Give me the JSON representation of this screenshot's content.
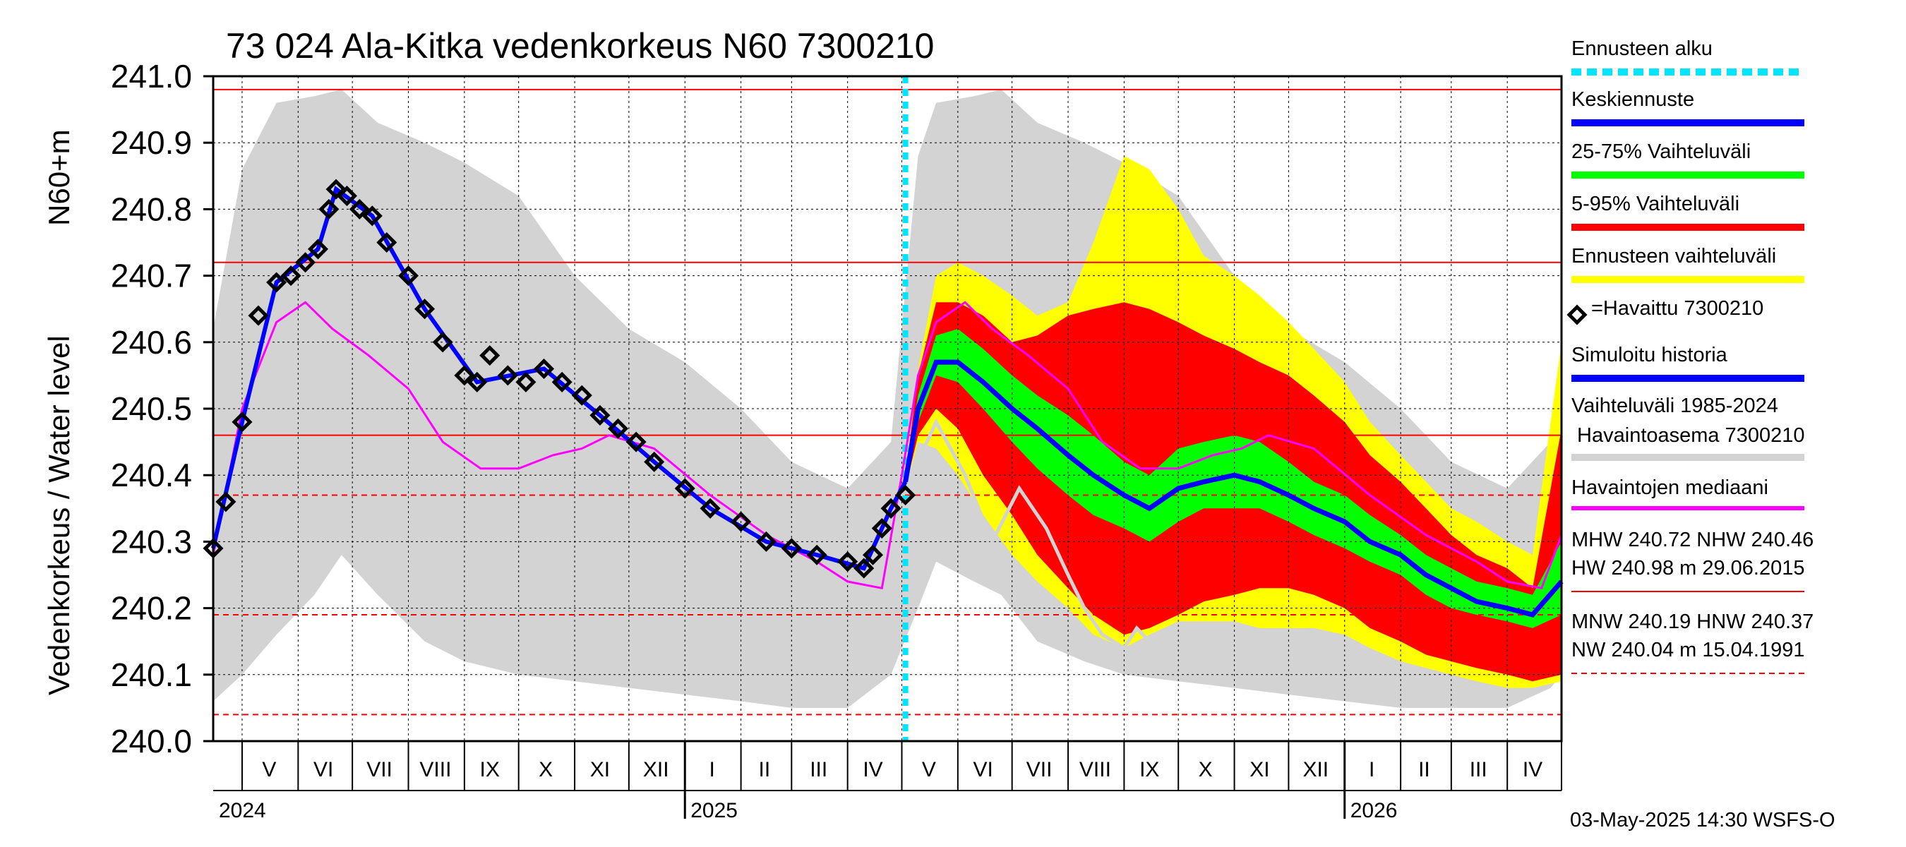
{
  "chart_data": {
    "type": "line",
    "title": "73 024 Ala-Kitka vedenkorkeus N60 7300210",
    "ylabel_top": "N60+m",
    "ylabel": "Vedenkorkeus / Water level",
    "ylim": [
      240.0,
      241.0
    ],
    "yticks": [
      "240.0",
      "240.1",
      "240.2",
      "240.3",
      "240.4",
      "240.5",
      "240.6",
      "240.7",
      "240.8",
      "240.9",
      "241.0"
    ],
    "x_start": "2024-04-15",
    "x_end": "2026-05-01",
    "forecast_start": "2025-05-03",
    "month_labels": [
      {
        "label": "V",
        "date": "2024-05-16"
      },
      {
        "label": "VI",
        "date": "2024-06-15"
      },
      {
        "label": "VII",
        "date": "2024-07-16"
      },
      {
        "label": "VIII",
        "date": "2024-08-16"
      },
      {
        "label": "IX",
        "date": "2024-09-15"
      },
      {
        "label": "X",
        "date": "2024-10-16"
      },
      {
        "label": "XI",
        "date": "2024-11-15"
      },
      {
        "label": "XII",
        "date": "2024-12-16"
      },
      {
        "label": "I",
        "date": "2025-01-16"
      },
      {
        "label": "II",
        "date": "2025-02-14"
      },
      {
        "label": "III",
        "date": "2025-03-16"
      },
      {
        "label": "IV",
        "date": "2025-04-15"
      },
      {
        "label": "V",
        "date": "2025-05-16"
      },
      {
        "label": "VI",
        "date": "2025-06-15"
      },
      {
        "label": "VII",
        "date": "2025-07-16"
      },
      {
        "label": "VIII",
        "date": "2025-08-16"
      },
      {
        "label": "IX",
        "date": "2025-09-15"
      },
      {
        "label": "X",
        "date": "2025-10-16"
      },
      {
        "label": "XI",
        "date": "2025-11-15"
      },
      {
        "label": "XII",
        "date": "2025-12-16"
      },
      {
        "label": "I",
        "date": "2026-01-16"
      },
      {
        "label": "II",
        "date": "2026-02-14"
      },
      {
        "label": "III",
        "date": "2026-03-16"
      },
      {
        "label": "IV",
        "date": "2026-04-15"
      }
    ],
    "year_labels": [
      {
        "label": "2024",
        "date": "2024-04-15"
      },
      {
        "label": "2025",
        "date": "2025-01-01"
      },
      {
        "label": "2026",
        "date": "2026-01-01"
      }
    ],
    "hlines": [
      {
        "value": 240.98,
        "style": "solid"
      },
      {
        "value": 240.72,
        "style": "solid"
      },
      {
        "value": 240.46,
        "style": "solid"
      },
      {
        "value": 240.37,
        "style": "dashed"
      },
      {
        "value": 240.19,
        "style": "dashed"
      },
      {
        "value": 240.04,
        "style": "dashed"
      }
    ],
    "history_band": {
      "dates": [
        "2024-04-15",
        "2024-05-01",
        "2024-05-20",
        "2024-06-10",
        "2024-06-25",
        "2024-07-15",
        "2024-08-10",
        "2024-09-01",
        "2024-10-01",
        "2024-11-01",
        "2024-12-01",
        "2025-01-01",
        "2025-02-01",
        "2025-03-01",
        "2025-04-01",
        "2025-04-25",
        "2025-05-10",
        "2025-05-20",
        "2025-06-10",
        "2025-06-25",
        "2025-07-15",
        "2025-08-10",
        "2025-09-01",
        "2025-10-01",
        "2025-11-01",
        "2025-12-01",
        "2026-01-01",
        "2026-02-01",
        "2026-03-01",
        "2026-04-01",
        "2026-04-25",
        "2026-05-01"
      ],
      "max": [
        240.62,
        240.86,
        240.96,
        240.97,
        240.98,
        240.93,
        240.9,
        240.87,
        240.82,
        240.7,
        240.62,
        240.57,
        240.5,
        240.42,
        240.38,
        240.45,
        240.88,
        240.96,
        240.97,
        240.98,
        240.93,
        240.9,
        240.87,
        240.82,
        240.7,
        240.62,
        240.57,
        240.5,
        240.42,
        240.38,
        240.45,
        240.6
      ],
      "min": [
        240.06,
        240.1,
        240.16,
        240.22,
        240.28,
        240.22,
        240.15,
        240.12,
        240.1,
        240.09,
        240.08,
        240.07,
        240.06,
        240.05,
        240.05,
        240.1,
        240.2,
        240.27,
        240.24,
        240.22,
        240.15,
        240.12,
        240.1,
        240.09,
        240.08,
        240.07,
        240.06,
        240.05,
        240.05,
        240.05,
        240.08,
        240.1
      ]
    },
    "forecast_dates": [
      "2025-05-03",
      "2025-05-10",
      "2025-05-20",
      "2025-06-01",
      "2025-06-15",
      "2025-07-01",
      "2025-07-15",
      "2025-08-01",
      "2025-08-15",
      "2025-09-01",
      "2025-09-15",
      "2025-10-01",
      "2025-10-15",
      "2025-11-01",
      "2025-11-15",
      "2025-12-01",
      "2025-12-15",
      "2026-01-01",
      "2026-01-15",
      "2026-02-01",
      "2026-02-15",
      "2026-03-01",
      "2026-03-15",
      "2026-04-01",
      "2026-04-15",
      "2026-05-01"
    ],
    "forecast_range_max": [
      240.4,
      240.56,
      240.7,
      240.72,
      240.7,
      240.67,
      240.64,
      240.66,
      240.75,
      240.88,
      240.86,
      240.8,
      240.73,
      240.7,
      240.67,
      240.63,
      240.59,
      240.54,
      240.48,
      240.43,
      240.39,
      240.35,
      240.33,
      240.3,
      240.28,
      240.6
    ],
    "forecast_range_min": [
      240.38,
      240.45,
      240.44,
      240.4,
      240.34,
      240.28,
      240.24,
      240.2,
      240.16,
      240.14,
      240.16,
      240.18,
      240.18,
      240.18,
      240.17,
      240.17,
      240.17,
      240.16,
      240.14,
      240.12,
      240.11,
      240.1,
      240.09,
      240.08,
      240.08,
      240.09
    ],
    "p5": [
      240.38,
      240.46,
      240.5,
      240.47,
      240.4,
      240.34,
      240.28,
      240.23,
      240.19,
      240.16,
      240.17,
      240.19,
      240.21,
      240.22,
      240.23,
      240.23,
      240.22,
      240.2,
      240.17,
      240.15,
      240.13,
      240.12,
      240.11,
      240.1,
      240.09,
      240.1
    ],
    "p95": [
      240.4,
      240.55,
      240.66,
      240.66,
      240.64,
      240.6,
      240.61,
      240.64,
      240.65,
      240.66,
      240.65,
      240.63,
      240.61,
      240.59,
      240.57,
      240.55,
      240.52,
      240.48,
      240.43,
      240.39,
      240.35,
      240.31,
      240.28,
      240.26,
      240.23,
      240.47
    ],
    "p25": [
      240.39,
      240.48,
      240.55,
      240.54,
      240.5,
      240.45,
      240.41,
      240.37,
      240.34,
      240.32,
      240.3,
      240.33,
      240.35,
      240.35,
      240.35,
      240.33,
      240.31,
      240.29,
      240.27,
      240.25,
      240.22,
      240.2,
      240.19,
      240.18,
      240.17,
      240.19
    ],
    "p75": [
      240.4,
      240.52,
      240.61,
      240.62,
      240.59,
      240.55,
      240.52,
      240.49,
      240.46,
      240.42,
      240.4,
      240.44,
      240.45,
      240.46,
      240.45,
      240.42,
      240.39,
      240.37,
      240.34,
      240.31,
      240.28,
      240.26,
      240.24,
      240.23,
      240.22,
      240.3
    ],
    "forecast_mean": [
      240.39,
      240.5,
      240.57,
      240.57,
      240.54,
      240.5,
      240.47,
      240.43,
      240.4,
      240.37,
      240.35,
      240.38,
      240.39,
      240.4,
      240.39,
      240.37,
      240.35,
      240.33,
      240.3,
      240.28,
      240.25,
      240.23,
      240.21,
      240.2,
      240.19,
      240.24
    ],
    "observed": {
      "dates": [
        "2024-04-15",
        "2024-04-22",
        "2024-05-01",
        "2024-05-10",
        "2024-05-20",
        "2024-05-28",
        "2024-06-05",
        "2024-06-12",
        "2024-06-18",
        "2024-06-22",
        "2024-06-28",
        "2024-07-05",
        "2024-07-12",
        "2024-07-20",
        "2024-08-01",
        "2024-08-10",
        "2024-08-20",
        "2024-09-01",
        "2024-09-08",
        "2024-09-15",
        "2024-09-25",
        "2024-10-05",
        "2024-10-15",
        "2024-10-25",
        "2024-11-05",
        "2024-11-15",
        "2024-11-25",
        "2024-12-05",
        "2024-12-15",
        "2025-01-01",
        "2025-01-15",
        "2025-02-01",
        "2025-02-15",
        "2025-03-01",
        "2025-03-15",
        "2025-04-01",
        "2025-04-10",
        "2025-04-15",
        "2025-04-20",
        "2025-04-25",
        "2025-05-03"
      ],
      "values": [
        240.29,
        240.36,
        240.48,
        240.64,
        240.69,
        240.7,
        240.72,
        240.74,
        240.8,
        240.83,
        240.82,
        240.8,
        240.79,
        240.75,
        240.7,
        240.65,
        240.6,
        240.55,
        240.54,
        240.58,
        240.55,
        240.54,
        240.56,
        240.54,
        240.52,
        240.49,
        240.47,
        240.45,
        240.42,
        240.38,
        240.35,
        240.33,
        240.3,
        240.29,
        240.28,
        240.27,
        240.26,
        240.28,
        240.32,
        240.35,
        240.37
      ]
    },
    "sim_history": {
      "dates": [
        "2024-04-15",
        "2024-05-01",
        "2024-05-20",
        "2024-06-12",
        "2024-06-22",
        "2024-07-12",
        "2024-08-10",
        "2024-09-08",
        "2024-10-15",
        "2024-11-15",
        "2024-12-15",
        "2025-01-15",
        "2025-02-15",
        "2025-03-15",
        "2025-04-10",
        "2025-04-25",
        "2025-05-03"
      ],
      "values": [
        240.29,
        240.48,
        240.69,
        240.74,
        240.83,
        240.79,
        240.65,
        240.54,
        240.56,
        240.49,
        240.42,
        240.35,
        240.3,
        240.28,
        240.26,
        240.35,
        240.39
      ]
    },
    "median": {
      "dates": [
        "2024-04-15",
        "2024-05-01",
        "2024-05-20",
        "2024-06-05",
        "2024-06-20",
        "2024-07-10",
        "2024-08-01",
        "2024-08-20",
        "2024-09-10",
        "2024-10-01",
        "2024-10-20",
        "2024-11-05",
        "2024-11-20",
        "2024-12-15",
        "2025-01-15",
        "2025-02-15",
        "2025-03-15",
        "2025-04-01",
        "2025-04-20",
        "2025-05-01",
        "2025-05-10",
        "2025-05-20",
        "2025-06-05",
        "2025-06-20",
        "2025-07-10",
        "2025-08-01",
        "2025-08-20",
        "2025-09-10",
        "2025-10-01",
        "2025-10-20",
        "2025-11-05",
        "2025-11-20",
        "2025-12-15",
        "2026-01-15",
        "2026-02-15",
        "2026-03-15",
        "2026-04-01",
        "2026-04-20",
        "2026-05-01"
      ],
      "values": [
        240.28,
        240.5,
        240.63,
        240.66,
        240.62,
        240.58,
        240.53,
        240.45,
        240.41,
        240.41,
        240.43,
        240.44,
        240.46,
        240.44,
        240.37,
        240.31,
        240.27,
        240.24,
        240.23,
        240.4,
        240.55,
        240.63,
        240.66,
        240.62,
        240.58,
        240.53,
        240.45,
        240.41,
        240.41,
        240.43,
        240.44,
        240.46,
        240.44,
        240.37,
        240.31,
        240.27,
        240.24,
        240.23,
        240.31
      ]
    },
    "sim_low_grey": {
      "dates": [
        "2025-05-03",
        "2025-05-20",
        "2025-06-05",
        "2025-06-20",
        "2025-07-05",
        "2025-07-20",
        "2025-08-01",
        "2025-08-10",
        "2025-08-20",
        "2025-09-01",
        "2025-09-08",
        "2025-09-15"
      ],
      "values": [
        240.38,
        240.48,
        240.4,
        240.3,
        240.38,
        240.32,
        240.25,
        240.2,
        240.16,
        240.14,
        240.17,
        240.15
      ]
    },
    "colors": {
      "history_band": "#d3d3d3",
      "forecast_range": "#ffff00",
      "p5_95": "#ff0000",
      "p25_75": "#00ff00",
      "forecast_mean": "#0000ff",
      "observed": "#000000",
      "sim_history": "#0000ff",
      "median": "#ff00ff",
      "ref_lines": "#ff0000",
      "forecast_start": "#00e5ff",
      "grid": "#000000"
    }
  },
  "legend": {
    "forecast_start": "Ennusteen alku",
    "mean_forecast": "Keskiennuste",
    "range_25_75": "25-75% Vaihteluväli",
    "range_5_95": "5-95% Vaihteluväli",
    "forecast_range": "Ennusteen vaihteluväli",
    "observed": "=Havaittu 7300210",
    "sim_history": "Simuloitu historia",
    "history_range_line1": "Vaihteluväli 1985-2024",
    "history_range_line2": " Havaintoasema 7300210",
    "median": "Havaintojen mediaani"
  },
  "stats": {
    "line1": "MHW 240.72 NHW 240.46",
    "line2": "HW 240.98 m 29.06.2015",
    "line3": "MNW 240.19 HNW 240.37",
    "line4": "NW 240.04 m 15.04.1991"
  },
  "footer": "03-May-2025 14:30 WSFS-O"
}
